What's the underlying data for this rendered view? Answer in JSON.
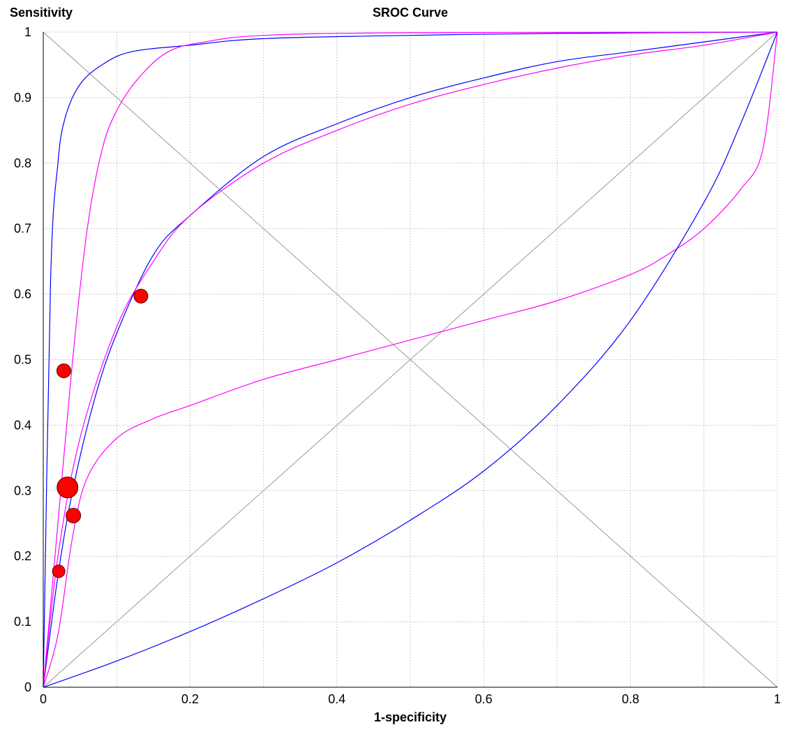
{
  "chart_data": {
    "type": "scatter",
    "title": "SROC Curve",
    "xlabel": "1-specificity",
    "ylabel": "Sensitivity",
    "xlim": [
      0,
      1
    ],
    "ylim": [
      0,
      1
    ],
    "x_ticks": [
      "0",
      "0.2",
      "0.4",
      "0.6",
      "0.8",
      "1"
    ],
    "y_ticks": [
      "0",
      "0.1",
      "0.2",
      "0.3",
      "0.4",
      "0.5",
      "0.6",
      "0.7",
      "0.8",
      "0.9",
      "1"
    ],
    "grid": true,
    "colors": {
      "blue": "#0000ff",
      "magenta": "#ff00ff",
      "points": "#ff0000",
      "diagonal": "#a9a9a9"
    },
    "points": [
      {
        "x": 0.133,
        "y": 0.597,
        "size": 1.0
      },
      {
        "x": 0.028,
        "y": 0.483,
        "size": 1.0
      },
      {
        "x": 0.033,
        "y": 0.305,
        "size": 1.5
      },
      {
        "x": 0.041,
        "y": 0.262,
        "size": 1.05
      },
      {
        "x": 0.021,
        "y": 0.177,
        "size": 0.9
      }
    ],
    "curves": [
      {
        "color": "blue",
        "x": [
          0,
          0.01,
          0.02,
          0.03,
          0.05,
          0.08,
          0.12,
          0.2,
          0.3,
          0.5,
          0.7,
          1
        ],
        "y": [
          0,
          0.62,
          0.8,
          0.87,
          0.92,
          0.95,
          0.97,
          0.98,
          0.99,
          0.995,
          0.998,
          1
        ]
      },
      {
        "color": "magenta",
        "x": [
          0,
          0.02,
          0.04,
          0.06,
          0.08,
          0.1,
          0.13,
          0.17,
          0.22,
          0.3,
          0.5,
          1
        ],
        "y": [
          0,
          0.25,
          0.5,
          0.7,
          0.82,
          0.88,
          0.93,
          0.97,
          0.985,
          0.995,
          0.999,
          1
        ]
      },
      {
        "color": "blue",
        "x": [
          0,
          0.02,
          0.04,
          0.07,
          0.1,
          0.15,
          0.2,
          0.3,
          0.4,
          0.5,
          0.6,
          0.7,
          0.8,
          0.9,
          1
        ],
        "y": [
          0,
          0.17,
          0.3,
          0.44,
          0.54,
          0.66,
          0.72,
          0.81,
          0.86,
          0.9,
          0.93,
          0.955,
          0.97,
          0.985,
          1
        ]
      },
      {
        "color": "magenta",
        "x": [
          0,
          0.02,
          0.05,
          0.1,
          0.15,
          0.2,
          0.3,
          0.4,
          0.5,
          0.6,
          0.7,
          0.8,
          0.9,
          1
        ],
        "y": [
          0,
          0.2,
          0.38,
          0.55,
          0.65,
          0.72,
          0.8,
          0.85,
          0.89,
          0.92,
          0.945,
          0.965,
          0.98,
          1
        ]
      },
      {
        "color": "magenta",
        "x": [
          0,
          0.02,
          0.04,
          0.06,
          0.1,
          0.15,
          0.2,
          0.3,
          0.4,
          0.5,
          0.6,
          0.7,
          0.8,
          0.85,
          0.9,
          0.95,
          0.98,
          1
        ],
        "y": [
          0,
          0.08,
          0.23,
          0.32,
          0.38,
          0.41,
          0.43,
          0.47,
          0.5,
          0.53,
          0.56,
          0.59,
          0.63,
          0.66,
          0.7,
          0.76,
          0.82,
          1
        ]
      },
      {
        "color": "blue",
        "x": [
          0,
          0.1,
          0.2,
          0.3,
          0.4,
          0.5,
          0.6,
          0.7,
          0.8,
          0.9,
          0.95,
          1
        ],
        "y": [
          0,
          0.04,
          0.085,
          0.135,
          0.19,
          0.255,
          0.33,
          0.43,
          0.56,
          0.74,
          0.86,
          1
        ]
      }
    ]
  }
}
